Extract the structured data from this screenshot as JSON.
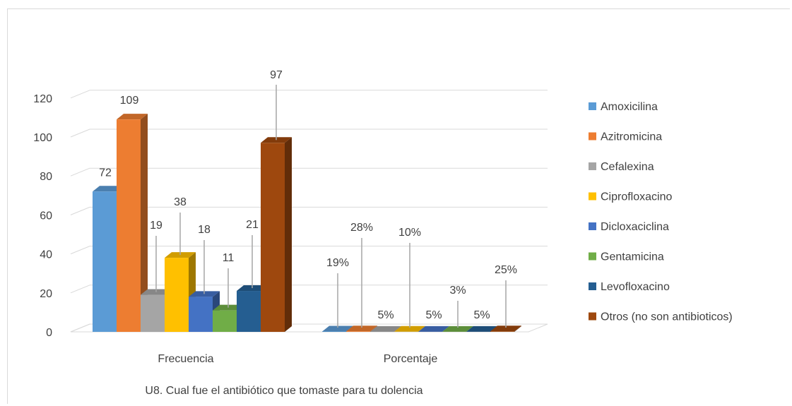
{
  "chart_data": {
    "type": "bar",
    "caption": "U8. Cual fue el antibiótico que tomaste para tu dolencia",
    "categories": [
      "Frecuencia",
      "Porcentaje"
    ],
    "ylim": [
      0,
      120
    ],
    "yticks": [
      0,
      20,
      40,
      60,
      80,
      100,
      120
    ],
    "grid": true,
    "legend_position": "right",
    "series": [
      {
        "name": "Amoxicilina",
        "color": "#5b9bd5",
        "values": [
          72,
          0.19
        ],
        "labels": [
          "72",
          "19%"
        ]
      },
      {
        "name": "Azitromicina",
        "color": "#ed7d31",
        "values": [
          109,
          0.28
        ],
        "labels": [
          "109",
          "28%"
        ]
      },
      {
        "name": "Cefalexina",
        "color": "#a5a5a5",
        "values": [
          19,
          0.05
        ],
        "labels": [
          "19",
          "5%"
        ]
      },
      {
        "name": "Ciprofloxacino",
        "color": "#ffc000",
        "values": [
          38,
          0.1
        ],
        "labels": [
          "38",
          "10%"
        ]
      },
      {
        "name": "Dicloxaciclina",
        "color": "#4472c4",
        "values": [
          18,
          0.05
        ],
        "labels": [
          "18",
          "5%"
        ]
      },
      {
        "name": "Gentamicina",
        "color": "#70ad47",
        "values": [
          11,
          0.03
        ],
        "labels": [
          "11",
          "3%"
        ]
      },
      {
        "name": "Levofloxacino",
        "color": "#255e91",
        "values": [
          21,
          0.05
        ],
        "labels": [
          "21",
          "5%"
        ]
      },
      {
        "name": "Otros (no son antibioticos)",
        "color": "#9e480e",
        "values": [
          97,
          0.25
        ],
        "labels": [
          "97",
          "25%"
        ]
      }
    ]
  }
}
